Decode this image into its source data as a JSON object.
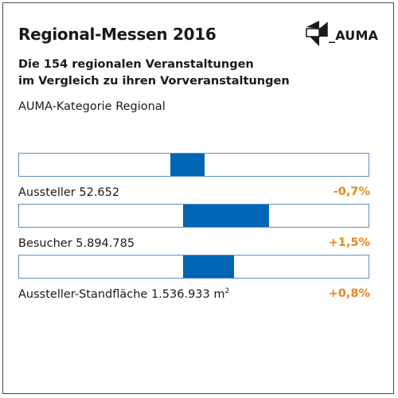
{
  "title": "Regional-Messen 2016",
  "logo_text": "_AUMA",
  "subtitle_line1": "Die 154 regionalen Veranstaltungen",
  "subtitle_line2": "im Vergleich zu ihren Vorveranstaltungen",
  "category": "AUMA-Kategorie Regional",
  "colors": {
    "bar": "#0066b3",
    "border": "#5a8fc4",
    "value": "#e8861a"
  },
  "chart_data": {
    "type": "bar",
    "orientation": "horizontal-diverging",
    "center": 0,
    "xlim": [
      -3.5,
      3.5
    ],
    "categories": [
      "Aussteller 52.652",
      "Besucher 5.894.785",
      "Aussteller-Standfläche 1.536.933 m²"
    ],
    "values": [
      -0.7,
      1.5,
      0.8
    ],
    "rows": [
      {
        "label": "Aussteller 52.652",
        "unit_sup": "",
        "value": -0.7,
        "value_label": "-0,7%"
      },
      {
        "label": "Besucher 5.894.785",
        "unit_sup": "",
        "value": 1.5,
        "value_label": "+1,5%"
      },
      {
        "label": "Aussteller-Standfläche 1.536.933 m",
        "unit_sup": "2",
        "value": 0.8,
        "value_label": "+0,8%"
      }
    ]
  }
}
